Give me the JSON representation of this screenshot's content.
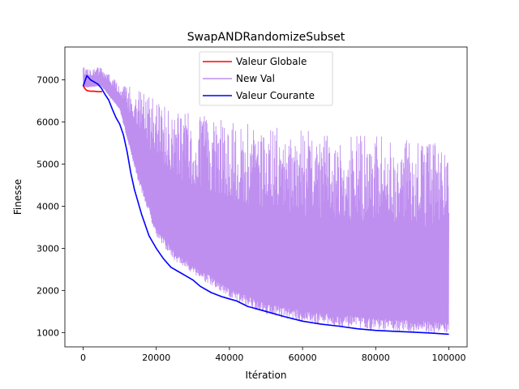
{
  "chart_data": {
    "type": "line",
    "title": "SwapANDRandomizeSubset",
    "xlabel": "Itération",
    "ylabel": "Finesse",
    "xlim": [
      -5000,
      105000
    ],
    "ylim": [
      660,
      7780
    ],
    "x_ticks": [
      0,
      20000,
      40000,
      60000,
      80000,
      100000
    ],
    "y_ticks": [
      1000,
      2000,
      3000,
      4000,
      5000,
      6000,
      7000
    ],
    "grid": false,
    "legend_position": "top-center",
    "series": [
      {
        "name": "Valeur Globale",
        "color": "#ff0000",
        "x": [
          0,
          400,
          800,
          1200,
          2000,
          3000,
          4000,
          5000,
          5200
        ],
        "y": [
          6870,
          6800,
          6760,
          6740,
          6730,
          6730,
          6720,
          6720,
          6720
        ]
      },
      {
        "name": "New Val",
        "color": "#bf8ff0",
        "style": "oscillating",
        "x": [
          0,
          5000,
          10000,
          15000,
          20000,
          25000,
          30000,
          40000,
          50000,
          60000,
          70000,
          80000,
          90000,
          100000
        ],
        "upper": [
          7300,
          7300,
          6900,
          6800,
          6500,
          6300,
          6200,
          6000,
          5900,
          5800,
          5700,
          5700,
          5600,
          5500
        ],
        "lower": [
          6820,
          6850,
          6300,
          4600,
          3300,
          2700,
          2400,
          1800,
          1450,
          1250,
          1150,
          1070,
          1020,
          990
        ]
      },
      {
        "name": "Valeur Courante",
        "color": "#0000ff",
        "x": [
          0,
          1000,
          2000,
          3000,
          4000,
          5000,
          6000,
          7000,
          8000,
          9000,
          10000,
          11000,
          12000,
          13000,
          14000,
          15000,
          16000,
          17000,
          18000,
          19000,
          20000,
          22000,
          24000,
          26000,
          28000,
          30000,
          32000,
          35000,
          38000,
          40000,
          42000,
          45000,
          48000,
          50000,
          55000,
          60000,
          65000,
          70000,
          75000,
          80000,
          85000,
          90000,
          95000,
          100000
        ],
        "y": [
          6850,
          7100,
          7000,
          6950,
          6900,
          6800,
          6650,
          6520,
          6300,
          6100,
          5950,
          5700,
          5300,
          4800,
          4400,
          4100,
          3800,
          3550,
          3300,
          3150,
          3000,
          2750,
          2550,
          2450,
          2350,
          2250,
          2100,
          1950,
          1850,
          1800,
          1750,
          1620,
          1550,
          1500,
          1380,
          1270,
          1200,
          1150,
          1090,
          1050,
          1030,
          1010,
          990,
          960
        ]
      }
    ]
  }
}
